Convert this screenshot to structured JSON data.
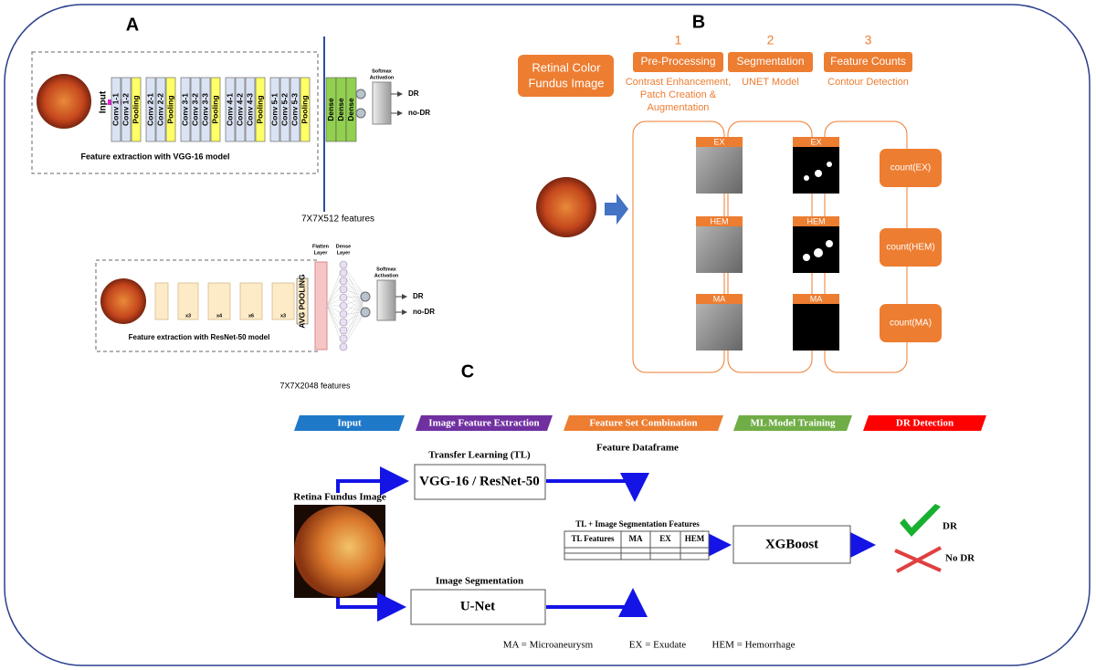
{
  "panels": {
    "a": "A",
    "b": "B",
    "c": "C"
  },
  "vgg": {
    "input": "Input",
    "groups": [
      [
        "Conv 1-1",
        "Conv 1-2"
      ],
      [
        "Conv 2-1",
        "Conv 2-2"
      ],
      [
        "Conv 3-1",
        "Conv 3-2",
        "Conv 3-3"
      ],
      [
        "Conv 4-1",
        "Conv 4-2",
        "Conv 4-3"
      ],
      [
        "Conv 5-1",
        "Conv 5-2",
        "Conv 5-3"
      ]
    ],
    "pooling": "Pooling",
    "dense": "Dense",
    "softmax": [
      "Softmax",
      "Activation"
    ],
    "outputs": [
      "DR",
      "no-DR"
    ],
    "caption": "Feature extraction with VGG-16 model",
    "features": "7X7X512 features"
  },
  "resnet": {
    "repeats": [
      "x3",
      "x4",
      "x6",
      "x3"
    ],
    "pooling": "AVG POOLING",
    "flatten": [
      "Flatten",
      "Layer"
    ],
    "dense": [
      "Dense",
      "Layer"
    ],
    "softmax": [
      "Softmax",
      "Activation"
    ],
    "outputs": [
      "DR",
      "no-DR"
    ],
    "caption": "Feature extraction with ResNet-50 model",
    "features": "7X7X2048 features"
  },
  "segmentation": {
    "input": [
      "Retinal Color",
      "Fundus Image"
    ],
    "steps": [
      {
        "number": "1",
        "name": "Pre-Processing",
        "detail": [
          "Contrast Enhancement,",
          "Patch Creation &",
          "Augmentation"
        ]
      },
      {
        "number": "2",
        "name": "Segmentation",
        "detail": [
          "UNET Model"
        ]
      },
      {
        "number": "3",
        "name": "Feature Counts",
        "detail": [
          "Contour Detection"
        ]
      }
    ],
    "lesions": [
      "EX",
      "HEM",
      "MA"
    ],
    "counts": [
      "count(EX)",
      "count(HEM)",
      "count(MA)"
    ]
  },
  "pipeline": {
    "stages": [
      "Input",
      "Image Feature Extraction",
      "Feature Set Combination",
      "ML Model Training",
      "DR Detection"
    ],
    "dataframe": "Feature Dataframe",
    "tl_title": "Transfer Learning (TL)",
    "tl_model": "VGG-16 / ResNet-50",
    "fundus": "Retina Fundus Image",
    "seg_title": "Image Segmentation",
    "seg_model": "U-Net",
    "table_title": "TL + Image Segmentation Features",
    "table_headers": [
      "TL Features",
      "MA",
      "EX",
      "HEM"
    ],
    "classifier": "XGBoost",
    "outcomes": [
      "DR",
      "No DR"
    ],
    "legend": [
      "MA = Microaneurysm",
      "EX = Exudate",
      "HEM = Hemorrhage"
    ]
  }
}
